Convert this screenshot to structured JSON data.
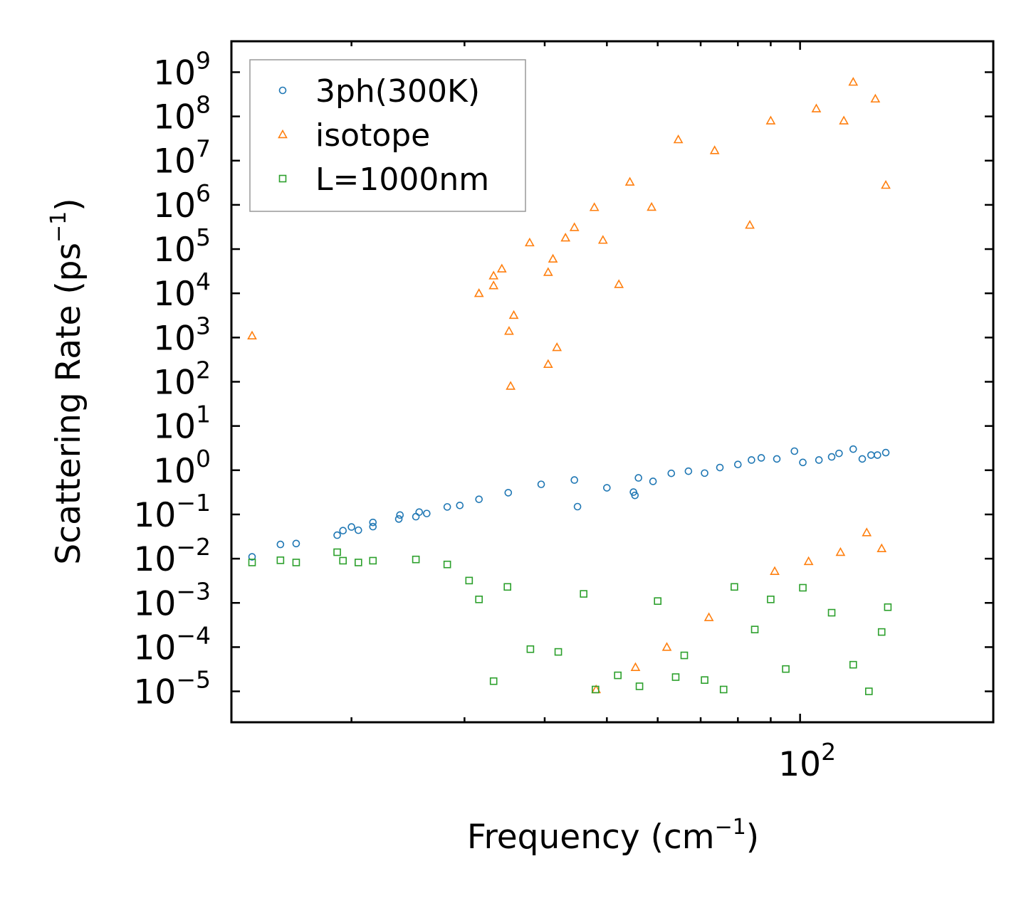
{
  "chart_data": {
    "type": "scatter",
    "title": "",
    "xlabel": "Frequency (cm",
    "xlabel_sup": "−1",
    "xlabel_tail": ")",
    "ylabel": "Scattering Rate (ps",
    "ylabel_sup": "−1",
    "ylabel_tail": ")",
    "xscale": "log",
    "yscale": "log",
    "xlim": [
      13,
      200
    ],
    "ylim": [
      2e-06,
      5000000000.0
    ],
    "x_tick_labels": [
      {
        "value": 100,
        "base": "10",
        "exp": "2"
      }
    ],
    "y_tick_labels": [
      {
        "value": 1e-05,
        "base": "10",
        "exp": "−5"
      },
      {
        "value": 0.0001,
        "base": "10",
        "exp": "−4"
      },
      {
        "value": 0.001,
        "base": "10",
        "exp": "−3"
      },
      {
        "value": 0.01,
        "base": "10",
        "exp": "−2"
      },
      {
        "value": 0.1,
        "base": "10",
        "exp": "−1"
      },
      {
        "value": 1,
        "base": "10",
        "exp": "0"
      },
      {
        "value": 10.0,
        "base": "10",
        "exp": "1"
      },
      {
        "value": 100.0,
        "base": "10",
        "exp": "2"
      },
      {
        "value": 1000.0,
        "base": "10",
        "exp": "3"
      },
      {
        "value": 10000.0,
        "base": "10",
        "exp": "4"
      },
      {
        "value": 100000.0,
        "base": "10",
        "exp": "5"
      },
      {
        "value": 1000000.0,
        "base": "10",
        "exp": "6"
      },
      {
        "value": 10000000.0,
        "base": "10",
        "exp": "7"
      },
      {
        "value": 100000000.0,
        "base": "10",
        "exp": "8"
      },
      {
        "value": 1000000000.0,
        "base": "10",
        "exp": "9"
      }
    ],
    "legend_position": "top-left",
    "grid": false,
    "series": [
      {
        "name": "3ph(300K)",
        "marker": "circle",
        "color": "#1f77b4",
        "points": [
          [
            14,
            0.011
          ],
          [
            15.5,
            0.021
          ],
          [
            16.4,
            0.022
          ],
          [
            19,
            0.034
          ],
          [
            19.4,
            0.043
          ],
          [
            20,
            0.052
          ],
          [
            20.5,
            0.044
          ],
          [
            21.6,
            0.053
          ],
          [
            21.6,
            0.066
          ],
          [
            23.7,
            0.079
          ],
          [
            23.8,
            0.097
          ],
          [
            25.2,
            0.089
          ],
          [
            25.5,
            0.113
          ],
          [
            26.2,
            0.105
          ],
          [
            28.2,
            0.148
          ],
          [
            29.5,
            0.16
          ],
          [
            31.6,
            0.22
          ],
          [
            35.1,
            0.31
          ],
          [
            39.5,
            0.48
          ],
          [
            44.5,
            0.6
          ],
          [
            45,
            0.15
          ],
          [
            50,
            0.4
          ],
          [
            55,
            0.32
          ],
          [
            55.3,
            0.27
          ],
          [
            56,
            0.67
          ],
          [
            59,
            0.56
          ],
          [
            63,
            0.85
          ],
          [
            67,
            0.95
          ],
          [
            71,
            0.86
          ],
          [
            75,
            1.15
          ],
          [
            80,
            1.35
          ],
          [
            84,
            1.7
          ],
          [
            87,
            1.9
          ],
          [
            92,
            1.8
          ],
          [
            98,
            2.7
          ],
          [
            101,
            1.5
          ],
          [
            107,
            1.7
          ],
          [
            112,
            2.0
          ],
          [
            115,
            2.4
          ],
          [
            121,
            3.0
          ],
          [
            125,
            1.8
          ],
          [
            129,
            2.2
          ],
          [
            132,
            2.2
          ],
          [
            136,
            2.5
          ]
        ]
      },
      {
        "name": "isotope",
        "marker": "triangle",
        "color": "#ff7f0e",
        "points": [
          [
            14,
            1100
          ],
          [
            31.6,
            10000.0
          ],
          [
            33.3,
            25000.0
          ],
          [
            33.3,
            15000.0
          ],
          [
            34.3,
            36000.0
          ],
          [
            35.2,
            1400
          ],
          [
            35.4,
            80
          ],
          [
            35.8,
            3200
          ],
          [
            37.9,
            140000.0
          ],
          [
            40.5,
            30000.0
          ],
          [
            40.5,
            250
          ],
          [
            41.2,
            60000.0
          ],
          [
            43.1,
            180000.0
          ],
          [
            41.8,
            600
          ],
          [
            44.5,
            310000.0
          ],
          [
            47.8,
            880000.0
          ],
          [
            49.3,
            160000.0
          ],
          [
            52.2,
            16000.0
          ],
          [
            54.3,
            3300000.0
          ],
          [
            58.7,
            890000.0
          ],
          [
            64.6,
            30000000.0
          ],
          [
            73.6,
            17000000.0
          ],
          [
            83.5,
            350000.0
          ],
          [
            90,
            80000000.0
          ],
          [
            106,
            150000000.0
          ],
          [
            117,
            80000000.0
          ],
          [
            121,
            600000000.0
          ],
          [
            131,
            250000000.0
          ],
          [
            136,
            2800000.0
          ],
          [
            48.1,
            1.1e-05
          ],
          [
            55.4,
            3.5e-05
          ],
          [
            62,
            0.0001
          ],
          [
            72.1,
            0.00047
          ],
          [
            91.3,
            0.0052
          ],
          [
            103.1,
            0.0087
          ],
          [
            115.6,
            0.014
          ],
          [
            127,
            0.039
          ],
          [
            134,
            0.017
          ]
        ]
      },
      {
        "name": "L=1000nm",
        "marker": "square",
        "color": "#2ca02c",
        "points": [
          [
            14,
            0.0082
          ],
          [
            15.5,
            0.0092
          ],
          [
            16.4,
            0.0082
          ],
          [
            19,
            0.014
          ],
          [
            19.4,
            0.009
          ],
          [
            20.5,
            0.0082
          ],
          [
            21.6,
            0.009
          ],
          [
            25.2,
            0.0096
          ],
          [
            28.2,
            0.0074
          ],
          [
            30.5,
            0.0032
          ],
          [
            31.6,
            0.0012
          ],
          [
            33.3,
            1.7e-05
          ],
          [
            35,
            0.0023
          ],
          [
            38,
            9e-05
          ],
          [
            42,
            7.8e-05
          ],
          [
            46,
            0.0016
          ],
          [
            48,
            1.1e-05
          ],
          [
            52,
            2.3e-05
          ],
          [
            56.2,
            1.3e-05
          ],
          [
            60,
            0.0011
          ],
          [
            64,
            2.1e-05
          ],
          [
            66,
            6.5e-05
          ],
          [
            71,
            1.8e-05
          ],
          [
            76,
            1.1e-05
          ],
          [
            79,
            0.0023
          ],
          [
            85,
            0.00025
          ],
          [
            90,
            0.0012
          ],
          [
            95,
            3.2e-05
          ],
          [
            101,
            0.0022
          ],
          [
            112,
            0.0006
          ],
          [
            121,
            4e-05
          ],
          [
            128,
            1e-05
          ],
          [
            134,
            0.00022
          ],
          [
            137,
            0.0008
          ]
        ]
      }
    ]
  }
}
